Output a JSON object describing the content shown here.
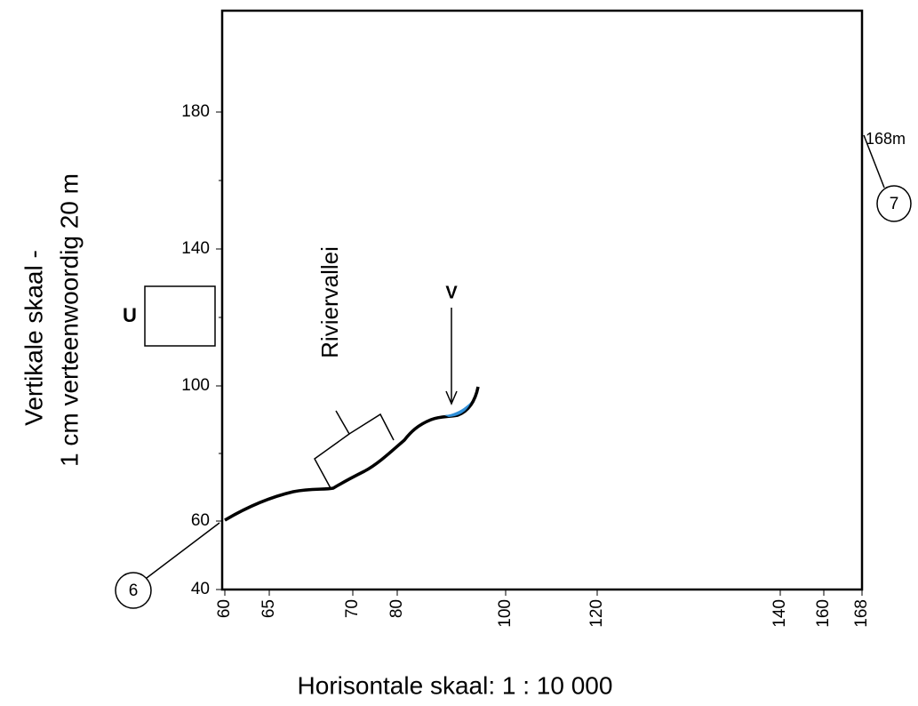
{
  "vertical_scale": {
    "line1": "Vertikale skaal -",
    "line2": "1 cm verteenwoordig 20 m"
  },
  "horizontal_scale": "Horisontale skaal: 1 : 10 000",
  "y_axis": {
    "ticks": [
      180,
      140,
      100,
      60,
      40
    ]
  },
  "x_axis": {
    "ticks": [
      60,
      65,
      70,
      80,
      100,
      120,
      140,
      160,
      168
    ]
  },
  "labels": {
    "valley": "Riviervallei",
    "box": "U",
    "arrow": "V",
    "height": "168m",
    "point_a": "6",
    "point_b": "7"
  }
}
